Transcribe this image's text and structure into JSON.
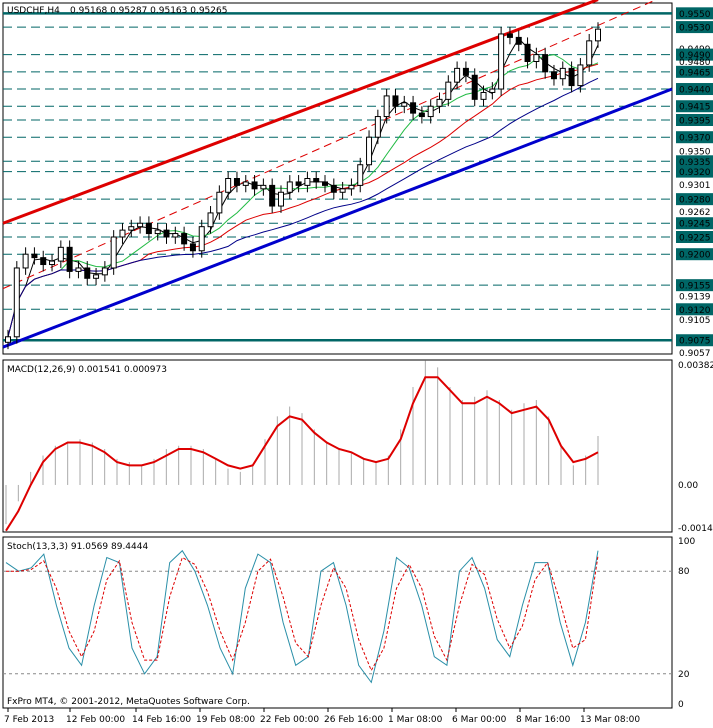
{
  "header": {
    "symbol": "USDCHF,H4",
    "ohlc": "0.95168 0.95287 0.95163 0.95265"
  },
  "macd_panel": {
    "title": "MACD(12,26,9) 0.001541 0.000973",
    "axis_labels": [
      "0.003825",
      "0.00",
      "-0.00144"
    ]
  },
  "stoch_panel": {
    "title": "Stoch(13,3,3) 91.0569 89.4444",
    "axis_labels": [
      "100",
      "80",
      "20",
      "0"
    ]
  },
  "copyright": "FxPro MT4, © 2001-2012, MetaQuotes Software Corp.",
  "x_labels": [
    "7 Feb 2013",
    "12 Feb 00:00",
    "14 Feb 16:00",
    "19 Feb 08:00",
    "22 Feb 00:00",
    "26 Feb 16:00",
    "1 Mar 08:00",
    "6 Mar 00:00",
    "8 Mar 16:00",
    "13 Mar 08:00"
  ],
  "chart_data": [
    {
      "type": "candlestick",
      "title": "USDCHF,H4",
      "ylim": [
        0.9055,
        0.9565
      ],
      "price_axis_labels": [
        "0.9550",
        "0.9530",
        "0.9499",
        "0.9490",
        "0.9480",
        "0.9465",
        "0.9440",
        "0.9415",
        "0.9395",
        "0.9370",
        "0.9350",
        "0.9335",
        "0.9320",
        "0.9301",
        "0.9280",
        "0.9262",
        "0.9245",
        "0.9225",
        "0.9200",
        "0.9155",
        "0.9139",
        "0.9120",
        "0.9105",
        "0.9075",
        "0.9057"
      ],
      "highlighted_levels": [
        0.955,
        0.953,
        0.949,
        0.9465,
        0.944,
        0.9415,
        0.9395,
        0.937,
        0.9335,
        0.932,
        0.928,
        0.9245,
        0.9225,
        0.92,
        0.9155,
        0.912,
        0.9075
      ],
      "close_path": [
        0.908,
        0.918,
        0.92,
        0.9195,
        0.9185,
        0.919,
        0.921,
        0.9175,
        0.918,
        0.9165,
        0.917,
        0.918,
        0.9225,
        0.9235,
        0.924,
        0.9245,
        0.923,
        0.9235,
        0.9225,
        0.923,
        0.9215,
        0.9205,
        0.924,
        0.926,
        0.929,
        0.931,
        0.93,
        0.9305,
        0.9295,
        0.93,
        0.927,
        0.929,
        0.9305,
        0.93,
        0.931,
        0.9305,
        0.93,
        0.929,
        0.9295,
        0.93,
        0.933,
        0.937,
        0.94,
        0.943,
        0.9415,
        0.942,
        0.9405,
        0.94,
        0.9415,
        0.9425,
        0.945,
        0.947,
        0.946,
        0.9425,
        0.9435,
        0.944,
        0.952,
        0.9515,
        0.9505,
        0.948,
        0.949,
        0.9465,
        0.9455,
        0.947,
        0.9445,
        0.9475,
        0.951,
        0.9527
      ],
      "series": [
        {
          "name": "upper channel",
          "color": "#dd0000",
          "from": 0.9245,
          "to": 0.957
        },
        {
          "name": "lower channel",
          "color": "#0000cc",
          "from": 0.9065,
          "to": 0.944
        }
      ]
    },
    {
      "type": "bar",
      "title": "MACD(12,26,9)",
      "ylim": [
        -0.00144,
        0.003825
      ],
      "histogram": [
        -0.0012,
        -0.0005,
        0.0004,
        0.0009,
        0.0012,
        0.0013,
        0.0014,
        0.0013,
        0.0011,
        0.0008,
        0.0007,
        0.0006,
        0.0008,
        0.0011,
        0.0012,
        0.0012,
        0.0011,
        0.0008,
        0.0005,
        0.0004,
        0.0006,
        0.0014,
        0.0021,
        0.0024,
        0.0022,
        0.0017,
        0.0013,
        0.0011,
        0.001,
        0.0008,
        0.0007,
        0.0009,
        0.0017,
        0.003,
        0.0038,
        0.0036,
        0.003,
        0.0026,
        0.0027,
        0.0029,
        0.0026,
        0.0023,
        0.0025,
        0.0026,
        0.0021,
        0.0012,
        0.0006,
        0.0009,
        0.0015
      ],
      "signal": [
        -0.0014,
        -0.0008,
        0.0,
        0.0007,
        0.0011,
        0.0013,
        0.0013,
        0.0012,
        0.001,
        0.0007,
        0.0006,
        0.0006,
        0.0007,
        0.0009,
        0.0011,
        0.0011,
        0.001,
        0.0008,
        0.0006,
        0.0005,
        0.0006,
        0.0012,
        0.0018,
        0.0021,
        0.002,
        0.0016,
        0.0013,
        0.0011,
        0.001,
        0.0008,
        0.0007,
        0.0008,
        0.0014,
        0.0025,
        0.0033,
        0.0033,
        0.0029,
        0.0025,
        0.0025,
        0.0027,
        0.0025,
        0.0022,
        0.0023,
        0.0024,
        0.002,
        0.0012,
        0.0007,
        0.0008,
        0.001
      ]
    },
    {
      "type": "line",
      "title": "Stoch(13,3,3)",
      "ylim": [
        0,
        100
      ],
      "levels": [
        20,
        80
      ],
      "main": [
        85,
        80,
        82,
        90,
        60,
        35,
        25,
        60,
        88,
        85,
        35,
        20,
        30,
        85,
        92,
        80,
        60,
        35,
        20,
        70,
        90,
        85,
        50,
        25,
        30,
        80,
        85,
        60,
        25,
        15,
        45,
        88,
        82,
        60,
        30,
        25,
        80,
        88,
        70,
        40,
        30,
        60,
        85,
        85,
        50,
        25,
        50,
        92
      ],
      "signal": [
        80,
        80,
        81,
        86,
        70,
        45,
        30,
        45,
        75,
        86,
        50,
        28,
        28,
        65,
        88,
        84,
        68,
        45,
        28,
        50,
        80,
        87,
        65,
        38,
        30,
        60,
        82,
        70,
        40,
        22,
        35,
        70,
        84,
        70,
        42,
        28,
        60,
        84,
        78,
        52,
        35,
        48,
        75,
        85,
        62,
        35,
        40,
        89
      ]
    }
  ]
}
